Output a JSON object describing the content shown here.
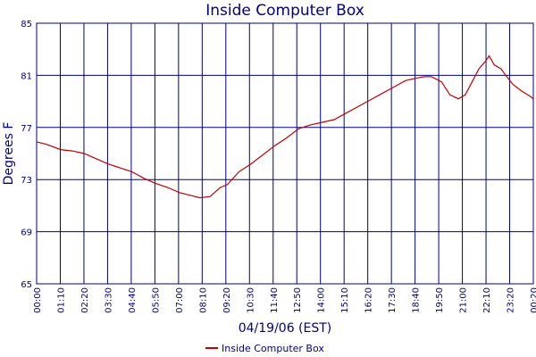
{
  "colors": {
    "axis": "#000080",
    "grid": "#000080",
    "series": "#c00000",
    "background": "#ffffff"
  },
  "chart_data": {
    "type": "line",
    "title": "Inside Computer Box",
    "xlabel": "04/19/06 (EST)",
    "ylabel": "Degrees F",
    "ylim": [
      65,
      85
    ],
    "yticks": [
      65,
      69,
      73,
      77,
      81,
      85
    ],
    "xlim_minutes": [
      0,
      1460
    ],
    "xtick_labels": [
      "00:00",
      "01:10",
      "02:20",
      "03:30",
      "04:40",
      "05:50",
      "07:00",
      "08:10",
      "09:20",
      "10:30",
      "11:40",
      "12:50",
      "14:00",
      "15:10",
      "16:20",
      "17:30",
      "18:40",
      "19:50",
      "21:00",
      "22:10",
      "23:20",
      "00:20"
    ],
    "grid": true,
    "legend": {
      "position": "bottom-center",
      "entries": [
        "Inside Computer Box"
      ]
    },
    "series": [
      {
        "name": "Inside Computer Box",
        "x": [
          "00:00",
          "00:30",
          "01:10",
          "01:45",
          "02:20",
          "02:55",
          "03:30",
          "04:05",
          "04:40",
          "05:15",
          "05:50",
          "06:25",
          "07:00",
          "07:30",
          "08:00",
          "08:30",
          "09:00",
          "09:20",
          "09:55",
          "10:30",
          "11:05",
          "11:40",
          "12:15",
          "12:50",
          "13:25",
          "14:00",
          "14:35",
          "15:10",
          "15:45",
          "16:20",
          "16:55",
          "17:30",
          "18:05",
          "18:40",
          "19:00",
          "19:20",
          "19:50",
          "20:15",
          "20:40",
          "21:00",
          "21:20",
          "21:40",
          "22:00",
          "22:10",
          "22:25",
          "22:45",
          "23:05",
          "23:20",
          "23:45",
          "00:10",
          "00:20"
        ],
        "y": [
          75.9,
          75.7,
          75.3,
          75.2,
          75.0,
          74.6,
          74.2,
          73.9,
          73.6,
          73.1,
          72.7,
          72.4,
          72.0,
          71.8,
          71.6,
          71.7,
          72.4,
          72.6,
          73.6,
          74.2,
          74.9,
          75.6,
          76.2,
          76.9,
          77.2,
          77.4,
          77.6,
          78.1,
          78.6,
          79.1,
          79.6,
          80.1,
          80.6,
          80.8,
          80.9,
          80.9,
          80.5,
          79.5,
          79.2,
          79.5,
          80.5,
          81.5,
          82.1,
          82.5,
          81.8,
          81.5,
          80.8,
          80.3,
          79.8,
          79.4,
          79.2
        ]
      }
    ]
  }
}
